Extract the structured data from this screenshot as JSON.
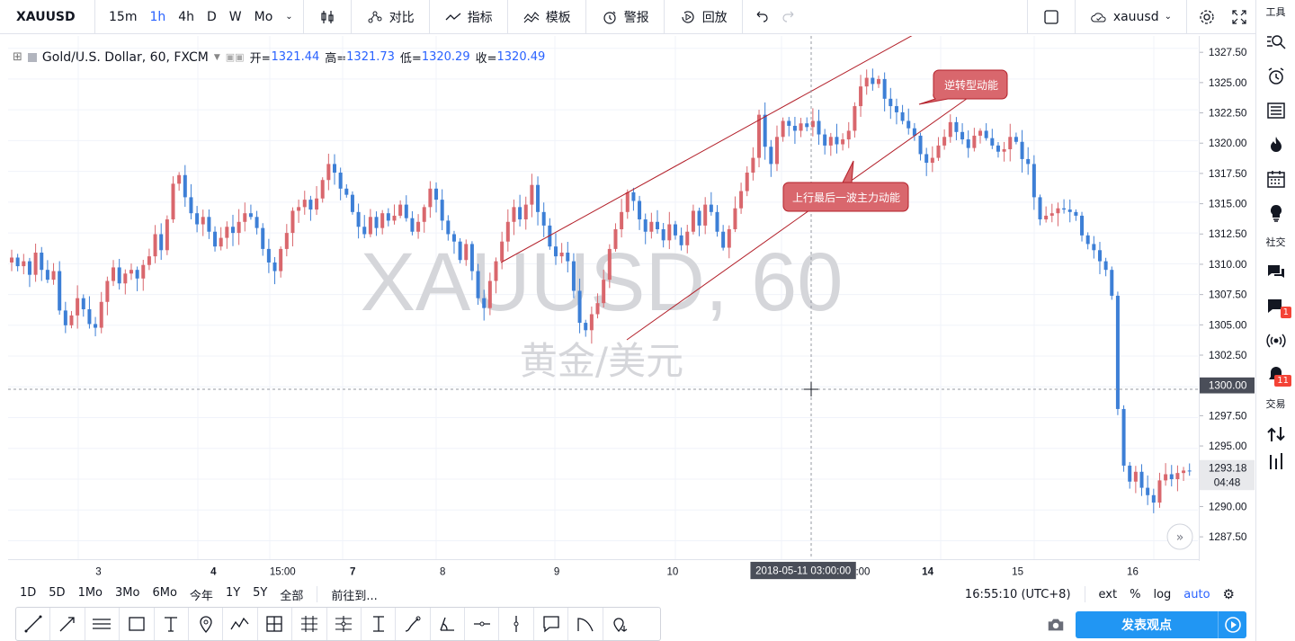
{
  "header": {
    "symbol": "XAUUSD",
    "timeframes": [
      "15m",
      "1h",
      "4h",
      "D",
      "W",
      "Mo"
    ],
    "active_timeframe": "1h",
    "compare_label": "对比",
    "indicators_label": "指标",
    "templates_label": "模板",
    "alert_label": "警报",
    "replay_label": "回放",
    "user_label": "xauusd"
  },
  "legend": {
    "title": "Gold/U.S. Dollar, 60, FXCM",
    "open_label": "开=",
    "open": "1321.44",
    "high_label": "高=",
    "high": "1321.73",
    "low_label": "低=",
    "low": "1320.29",
    "close_label": "收=",
    "close": "1320.49"
  },
  "watermark": {
    "line1": "XAUUSD, 60",
    "line2": "黄金/美元"
  },
  "annotations": {
    "reversal": "逆转型动能",
    "last_wave": "上行最后一波主力动能"
  },
  "price_axis": {
    "ticks": [
      "1327.50",
      "1325.00",
      "1322.50",
      "1320.00",
      "1317.50",
      "1315.00",
      "1312.50",
      "1310.00",
      "1307.50",
      "1305.00",
      "1302.50",
      "1300.00",
      "1297.50",
      "1295.00",
      "1292.50",
      "1290.00",
      "1287.50"
    ],
    "crosshair_price": "1300.00",
    "last_price": "1293.18",
    "countdown": "04:48"
  },
  "time_axis": {
    "labels": [
      "3",
      "4",
      "15:00",
      "7",
      "8",
      "9",
      "10",
      "11",
      "14",
      "15",
      "16"
    ],
    "crosshair_time": "2018-05-11 03:00:00",
    "partial_label": ":00"
  },
  "bottom": {
    "ranges": [
      "1D",
      "5D",
      "1Mo",
      "3Mo",
      "6Mo",
      "今年",
      "1Y",
      "5Y",
      "全部"
    ],
    "goto_label": "前往到...",
    "clock": "16:55:10 (UTC+8)",
    "ext_label": "ext",
    "pct_label": "%",
    "log_label": "log",
    "auto_label": "auto"
  },
  "right_sidebar": {
    "tools_label": "工具",
    "social_label": "社交",
    "trade_label": "交易",
    "chat_badge": "1",
    "notif_badge": "11"
  },
  "publish_label": "发表观点",
  "colors": {
    "up": "#d9676d",
    "down": "#3d7fd6",
    "accent": "#2962ff",
    "channel": "#b3202a"
  },
  "chart_data": {
    "type": "candlestick",
    "ylim": [
      1286,
      1328.5
    ],
    "candles_note": "",
    "closes": [
      1310.5,
      1309.8,
      1310.2,
      1309.1,
      1310.9,
      1309.5,
      1308.7,
      1309.4,
      1306.2,
      1305.0,
      1305.8,
      1307.2,
      1306.3,
      1305.1,
      1304.8,
      1306.9,
      1308.6,
      1309.7,
      1308.4,
      1309.2,
      1309.5,
      1308.8,
      1309.9,
      1310.6,
      1312.4,
      1311.1,
      1313.6,
      1316.5,
      1317.2,
      1315.4,
      1314.1,
      1313.2,
      1313.8,
      1312.6,
      1311.4,
      1312.1,
      1313.0,
      1312.5,
      1313.4,
      1314.1,
      1313.8,
      1312.9,
      1311.2,
      1310.1,
      1309.4,
      1311.2,
      1312.5,
      1314.3,
      1314.6,
      1315.2,
      1314.4,
      1315.3,
      1316.8,
      1318.1,
      1317.4,
      1316.1,
      1315.6,
      1314.2,
      1313.0,
      1312.4,
      1313.8,
      1312.9,
      1314.1,
      1313.5,
      1313.9,
      1314.8,
      1313.7,
      1312.6,
      1313.4,
      1314.6,
      1316.1,
      1315.2,
      1313.5,
      1312.4,
      1311.8,
      1310.3,
      1311.6,
      1309.4,
      1307.2,
      1306.4,
      1308.6,
      1310.2,
      1311.8,
      1313.4,
      1314.6,
      1313.6,
      1314.8,
      1316.4,
      1314.2,
      1313.1,
      1311.4,
      1310.6,
      1310.9,
      1310.2,
      1307.8,
      1305.2,
      1304.6,
      1305.9,
      1306.8,
      1308.7,
      1311.2,
      1312.8,
      1314.2,
      1315.8,
      1315.1,
      1313.6,
      1312.6,
      1313.4,
      1312.8,
      1311.9,
      1313.2,
      1312.3,
      1311.5,
      1312.6,
      1314.3,
      1313.1,
      1314.8,
      1314.2,
      1312.6,
      1311.3,
      1312.8,
      1314.5,
      1315.9,
      1317.4,
      1318.6,
      1322.1,
      1319.5,
      1318.1,
      1320.3,
      1321.6,
      1321.2,
      1320.8,
      1321.4,
      1321.1,
      1321.6,
      1320.5,
      1319.6,
      1320.3,
      1319.7,
      1320.1,
      1320.8,
      1322.8,
      1324.4,
      1325.1,
      1324.6,
      1325.0,
      1323.4,
      1322.8,
      1322.3,
      1321.6,
      1321.0,
      1320.4,
      1318.9,
      1318.2,
      1318.6,
      1319.6,
      1320.3,
      1321.5,
      1320.7,
      1320.1,
      1319.4,
      1320.4,
      1320.8,
      1320.2,
      1319.6,
      1319.1,
      1319.3,
      1320.3,
      1319.9,
      1318.5,
      1318.1,
      1315.4,
      1313.6,
      1313.9,
      1314.1,
      1314.5,
      1314.4,
      1314.2,
      1313.9,
      1312.3,
      1311.6,
      1311.1,
      1310.2,
      1309.5,
      1307.4,
      1298.2,
      1293.6,
      1292.3,
      1293.1,
      1291.8,
      1291.2,
      1290.6,
      1292.4,
      1292.9,
      1292.5,
      1293.0,
      1293.2,
      1293.18
    ]
  }
}
